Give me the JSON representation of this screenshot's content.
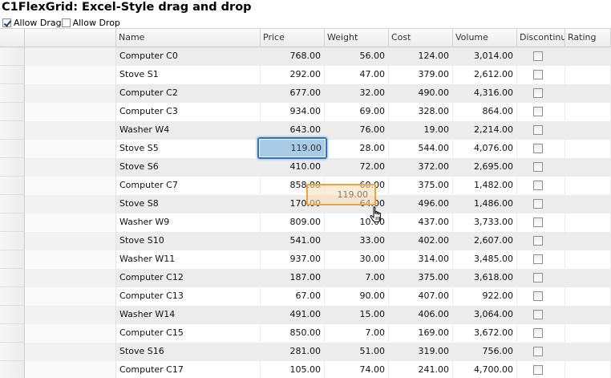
{
  "title": "C1FlexGrid: Excel-Style drag and drop",
  "options": {
    "allow_drag": {
      "label": "Allow Drag",
      "checked": true
    },
    "allow_drop": {
      "label": "Allow Drop",
      "checked": false
    }
  },
  "columns": [
    "Name",
    "Price",
    "Weight",
    "Cost",
    "Volume",
    "Discontinued",
    "Rating"
  ],
  "rows": [
    {
      "name": "Computer C0",
      "price": "768.00",
      "weight": "56.00",
      "cost": "124.00",
      "volume": "3,014.00"
    },
    {
      "name": "Stove S1",
      "price": "292.00",
      "weight": "47.00",
      "cost": "379.00",
      "volume": "2,612.00"
    },
    {
      "name": "Computer C2",
      "price": "677.00",
      "weight": "32.00",
      "cost": "490.00",
      "volume": "4,316.00"
    },
    {
      "name": "Computer C3",
      "price": "934.00",
      "weight": "69.00",
      "cost": "328.00",
      "volume": "864.00"
    },
    {
      "name": "Washer W4",
      "price": "643.00",
      "weight": "76.00",
      "cost": "19.00",
      "volume": "2,214.00"
    },
    {
      "name": "Stove S5",
      "price": "119.00",
      "weight": "28.00",
      "cost": "544.00",
      "volume": "4,076.00"
    },
    {
      "name": "Stove S6",
      "price": "410.00",
      "weight": "72.00",
      "cost": "372.00",
      "volume": "2,695.00"
    },
    {
      "name": "Computer C7",
      "price": "858.00",
      "weight": "60.00",
      "cost": "375.00",
      "volume": "1,482.00"
    },
    {
      "name": "Stove S8",
      "price": "170.00",
      "weight": "64.00",
      "cost": "496.00",
      "volume": "1,486.00"
    },
    {
      "name": "Washer W9",
      "price": "809.00",
      "weight": "10.00",
      "cost": "437.00",
      "volume": "3,733.00"
    },
    {
      "name": "Stove S10",
      "price": "541.00",
      "weight": "33.00",
      "cost": "402.00",
      "volume": "2,607.00"
    },
    {
      "name": "Washer W11",
      "price": "937.00",
      "weight": "30.00",
      "cost": "314.00",
      "volume": "3,485.00"
    },
    {
      "name": "Computer C12",
      "price": "187.00",
      "weight": "7.00",
      "cost": "375.00",
      "volume": "3,618.00"
    },
    {
      "name": "Computer C13",
      "price": "67.00",
      "weight": "90.00",
      "cost": "407.00",
      "volume": "922.00"
    },
    {
      "name": "Washer W14",
      "price": "491.00",
      "weight": "15.00",
      "cost": "406.00",
      "volume": "3,064.00"
    },
    {
      "name": "Computer C15",
      "price": "850.00",
      "weight": "7.00",
      "cost": "169.00",
      "volume": "3,672.00"
    },
    {
      "name": "Stove S16",
      "price": "281.00",
      "weight": "51.00",
      "cost": "319.00",
      "volume": "756.00"
    },
    {
      "name": "Computer C17",
      "price": "105.00",
      "weight": "74.00",
      "cost": "241.00",
      "volume": "4,700.00"
    }
  ],
  "selection": {
    "row": 5,
    "column": "Price",
    "value": "119.00"
  },
  "drag_preview": {
    "value": "119.00"
  },
  "colors": {
    "selection_border": "#3a6fb5",
    "selection_fill": "#a9cbe6",
    "drag_border": "#f0a43c",
    "alt_row": "#ececec"
  },
  "icons": {
    "cursor": "hand-pointer-icon"
  }
}
